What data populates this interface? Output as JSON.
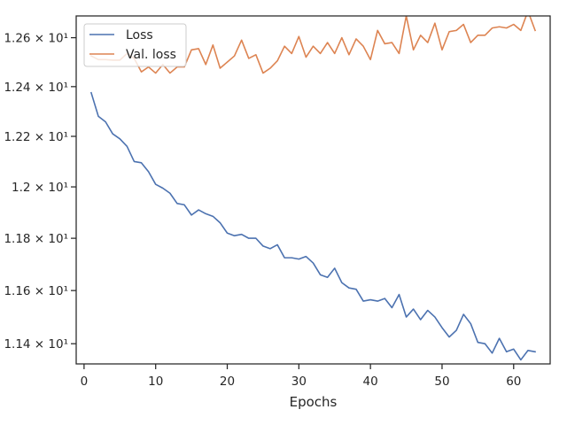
{
  "chart_data": {
    "type": "line",
    "title": "",
    "xlabel": "Epochs",
    "ylabel": "",
    "xlim": [
      -1.1,
      65.1
    ],
    "ylim": [
      11.325,
      12.69
    ],
    "x_ticks": [
      0,
      10,
      20,
      30,
      40,
      50,
      60
    ],
    "y_ticks": [
      {
        "value": 11.4,
        "label": "1.14 × 10¹"
      },
      {
        "value": 11.6,
        "label": "1.16 × 10¹"
      },
      {
        "value": 11.8,
        "label": "1.18 × 10¹"
      },
      {
        "value": 12.0,
        "label": "1.2 × 10¹"
      },
      {
        "value": 12.2,
        "label": "1.22 × 10¹"
      },
      {
        "value": 12.4,
        "label": "1.24 × 10¹"
      },
      {
        "value": 12.6,
        "label": "1.26 × 10¹"
      }
    ],
    "y_scale": "log",
    "grid": false,
    "legend_position": "top-left",
    "x": [
      1,
      2,
      3,
      4,
      5,
      6,
      7,
      8,
      9,
      10,
      11,
      12,
      13,
      14,
      15,
      16,
      17,
      18,
      19,
      20,
      21,
      22,
      23,
      24,
      25,
      26,
      27,
      28,
      29,
      30,
      31,
      32,
      33,
      34,
      35,
      36,
      37,
      38,
      39,
      40,
      41,
      42,
      43,
      44,
      45,
      46,
      47,
      48,
      49,
      50,
      51,
      52,
      53,
      54,
      55,
      56,
      57,
      58,
      59,
      60,
      61,
      62,
      63
    ],
    "series": [
      {
        "name": "Loss",
        "color": "#4c72b0",
        "values": [
          12.375,
          12.28,
          12.258,
          12.21,
          12.19,
          12.16,
          12.1,
          12.095,
          12.06,
          12.01,
          11.995,
          11.975,
          11.935,
          11.93,
          11.89,
          11.91,
          11.895,
          11.885,
          11.86,
          11.82,
          11.81,
          11.815,
          11.8,
          11.8,
          11.77,
          11.76,
          11.775,
          11.725,
          11.725,
          11.72,
          11.73,
          11.705,
          11.66,
          11.65,
          11.685,
          11.63,
          11.61,
          11.605,
          11.56,
          11.565,
          11.56,
          11.57,
          11.535,
          11.585,
          11.5,
          11.53,
          11.49,
          11.525,
          11.5,
          11.46,
          11.425,
          11.45,
          11.51,
          11.475,
          11.405,
          11.4,
          11.365,
          11.42,
          11.37,
          11.38,
          11.34,
          11.375,
          11.37
        ]
      },
      {
        "name": "Val. loss",
        "color": "#dd8452",
        "values": [
          12.525,
          12.51,
          12.51,
          12.508,
          12.508,
          12.535,
          12.515,
          12.46,
          12.48,
          12.455,
          12.49,
          12.455,
          12.48,
          12.48,
          12.55,
          12.555,
          12.49,
          12.57,
          12.475,
          12.5,
          12.525,
          12.59,
          12.515,
          12.53,
          12.455,
          12.475,
          12.505,
          12.565,
          12.535,
          12.605,
          12.52,
          12.565,
          12.535,
          12.58,
          12.535,
          12.6,
          12.53,
          12.595,
          12.565,
          12.51,
          12.63,
          12.575,
          12.58,
          12.535,
          12.69,
          12.55,
          12.61,
          12.58,
          12.66,
          12.55,
          12.625,
          12.63,
          12.655,
          12.58,
          12.61,
          12.61,
          12.64,
          12.645,
          12.64,
          12.655,
          12.63,
          12.71,
          12.63
        ]
      }
    ]
  }
}
